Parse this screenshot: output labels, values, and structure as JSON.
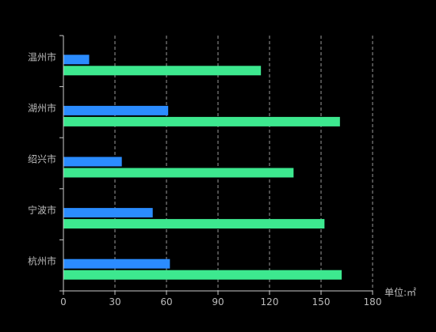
{
  "chart_data": {
    "type": "bar",
    "orientation": "horizontal",
    "categories": [
      "温州市",
      "湖州市",
      "绍兴市",
      "宁波市",
      "杭州市"
    ],
    "series": [
      {
        "values": [
          15,
          61,
          34,
          52,
          62
        ]
      },
      {
        "values": [
          115,
          161,
          134,
          152,
          162
        ]
      }
    ],
    "x_ticks": [
      0,
      30,
      60,
      90,
      120,
      150,
      180
    ],
    "xlim": [
      0,
      180
    ],
    "unit_label": "单位:㎡",
    "grid": "vertical-dashed",
    "colors": {
      "series": [
        "#2b8cff",
        "#3de88f"
      ],
      "axis": "#cccccc",
      "grid": "#9a9a9a",
      "label": "#bbbbbb"
    }
  }
}
